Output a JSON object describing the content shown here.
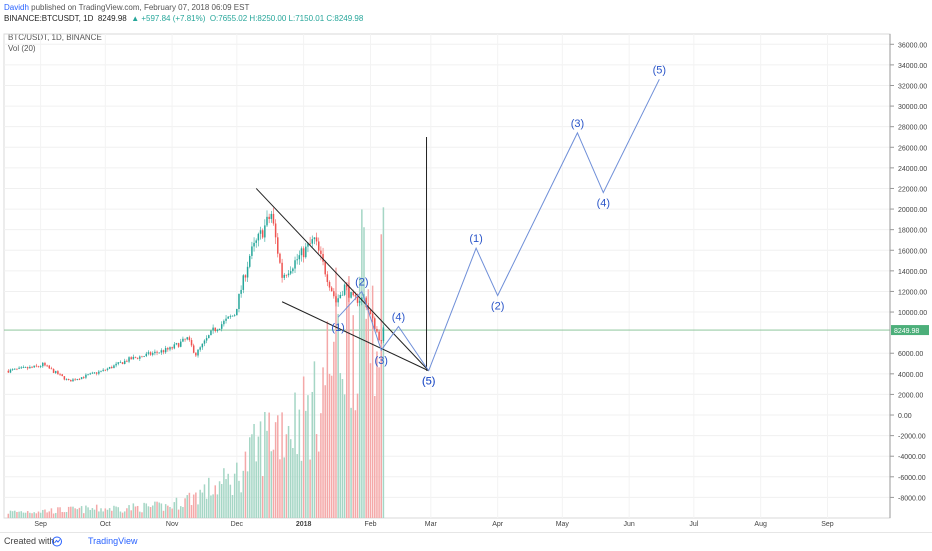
{
  "header": {
    "author": "Davidh",
    "published": " published on TradingView.com, February 07, 2018 06:09 EST",
    "symbol": "BINANCE:BTCUSDT, 1D",
    "last": "8249.98",
    "change": "▲ +597.84 (+7.81%)",
    "ohlc": "O:7655.02 H:8250.00 L:7150.01 C:8249.98"
  },
  "legend": {
    "symbol_line": "BTC/USDT, 1D, BINANCE",
    "vol_line": "Vol (20)"
  },
  "footer": {
    "created": "Created with",
    "brand": "TradingView"
  },
  "colors": {
    "up": "#26a69a",
    "down": "#ef5350",
    "vol_up": "#a5d6c5",
    "vol_down": "#f4a8a8",
    "wave": "#6f8fd8",
    "wave_label": "#2b56c9",
    "current_price_line": "#7fbf8f",
    "pattern": "#222222"
  },
  "chart_data": {
    "type": "candlestick",
    "symbol": "BTC/USDT",
    "exchange": "BINANCE",
    "interval": "1D",
    "y_axis": {
      "range": [
        -10000,
        37000
      ],
      "ticks": [
        "36000.00",
        "34000.00",
        "32000.00",
        "30000.00",
        "28000.00",
        "26000.00",
        "24000.00",
        "22000.00",
        "20000.00",
        "18000.00",
        "16000.00",
        "14000.00",
        "12000.00",
        "10000.00",
        "6000.00",
        "4000.00",
        "2000.00",
        "0.00",
        "-2000.00",
        "-4000.00",
        "-6000.00",
        "-8000.00"
      ],
      "current_price": "8249.98"
    },
    "x_axis": {
      "range": [
        "2017-08-15",
        "2018-09-30"
      ],
      "ticks": [
        {
          "date": "2017-09-01",
          "label": "Sep"
        },
        {
          "date": "2017-10-01",
          "label": "Oct"
        },
        {
          "date": "2017-11-01",
          "label": "Nov"
        },
        {
          "date": "2017-12-01",
          "label": "Dec"
        },
        {
          "date": "2018-01-01",
          "label": "2018"
        },
        {
          "date": "2018-02-01",
          "label": "Feb"
        },
        {
          "date": "2018-03-01",
          "label": "Mar"
        },
        {
          "date": "2018-04-01",
          "label": "Apr"
        },
        {
          "date": "2018-05-01",
          "label": "May"
        },
        {
          "date": "2018-06-01",
          "label": "Jun"
        },
        {
          "date": "2018-07-01",
          "label": "Jul"
        },
        {
          "date": "2018-08-01",
          "label": "Aug"
        },
        {
          "date": "2018-09-01",
          "label": "Sep"
        }
      ]
    },
    "price_path": [
      {
        "date": "2017-08-17",
        "price": 4300
      },
      {
        "date": "2017-08-31",
        "price": 4700
      },
      {
        "date": "2017-09-02",
        "price": 4900
      },
      {
        "date": "2017-09-14",
        "price": 3300
      },
      {
        "date": "2017-09-30",
        "price": 4300
      },
      {
        "date": "2017-10-12",
        "price": 5400
      },
      {
        "date": "2017-10-31",
        "price": 6400
      },
      {
        "date": "2017-11-08",
        "price": 7400
      },
      {
        "date": "2017-11-12",
        "price": 5900
      },
      {
        "date": "2017-11-20",
        "price": 8200
      },
      {
        "date": "2017-11-30",
        "price": 9800
      },
      {
        "date": "2017-12-07",
        "price": 15500
      },
      {
        "date": "2017-12-17",
        "price": 19500
      },
      {
        "date": "2017-12-22",
        "price": 13500
      },
      {
        "date": "2018-01-06",
        "price": 17000
      },
      {
        "date": "2018-01-16",
        "price": 11000
      },
      {
        "date": "2018-01-20",
        "price": 12500
      },
      {
        "date": "2018-01-24",
        "price": 11200
      },
      {
        "date": "2018-01-29",
        "price": 11300
      },
      {
        "date": "2018-02-06",
        "price": 7000
      },
      {
        "date": "2018-02-07",
        "price": 8250
      }
    ],
    "volume_path": [
      {
        "date": "2017-08-17",
        "vol": 0.3
      },
      {
        "date": "2017-10-31",
        "vol": 0.6
      },
      {
        "date": "2017-11-30",
        "vol": 2.0
      },
      {
        "date": "2017-12-17",
        "vol": 4.5
      },
      {
        "date": "2018-01-06",
        "vol": 5.5
      },
      {
        "date": "2018-01-16",
        "vol": 9.0
      },
      {
        "date": "2018-02-06",
        "vol": 12.0
      }
    ],
    "annotations": {
      "channel_upper": [
        {
          "date": "2017-12-10",
          "price": 22000
        },
        {
          "date": "2018-02-28",
          "price": 4300
        }
      ],
      "channel_lower": [
        {
          "date": "2017-12-22",
          "price": 11000
        },
        {
          "date": "2018-02-28",
          "price": 4300
        }
      ],
      "vertical_marker": {
        "date": "2018-02-27",
        "price_from": 4300,
        "price_to": 27000
      },
      "wave_small": [
        {
          "date": "2018-01-17",
          "price": 9500,
          "label": "(1)"
        },
        {
          "date": "2018-01-28",
          "price": 12000,
          "label": "(2)"
        },
        {
          "date": "2018-02-06",
          "price": 6300,
          "label": "(3)"
        },
        {
          "date": "2018-02-14",
          "price": 8600,
          "label": "(4)"
        },
        {
          "date": "2018-02-28",
          "price": 4300,
          "label": "(5)"
        }
      ],
      "wave_large": [
        {
          "date": "2018-02-28",
          "price": 4300,
          "label": "(5)"
        },
        {
          "date": "2018-03-22",
          "price": 16200,
          "label": "(1)"
        },
        {
          "date": "2018-04-01",
          "price": 11600,
          "label": "(2)"
        },
        {
          "date": "2018-05-08",
          "price": 27400,
          "label": "(3)"
        },
        {
          "date": "2018-05-20",
          "price": 21600,
          "label": "(4)"
        },
        {
          "date": "2018-06-15",
          "price": 32600,
          "label": "(5)"
        }
      ]
    }
  }
}
